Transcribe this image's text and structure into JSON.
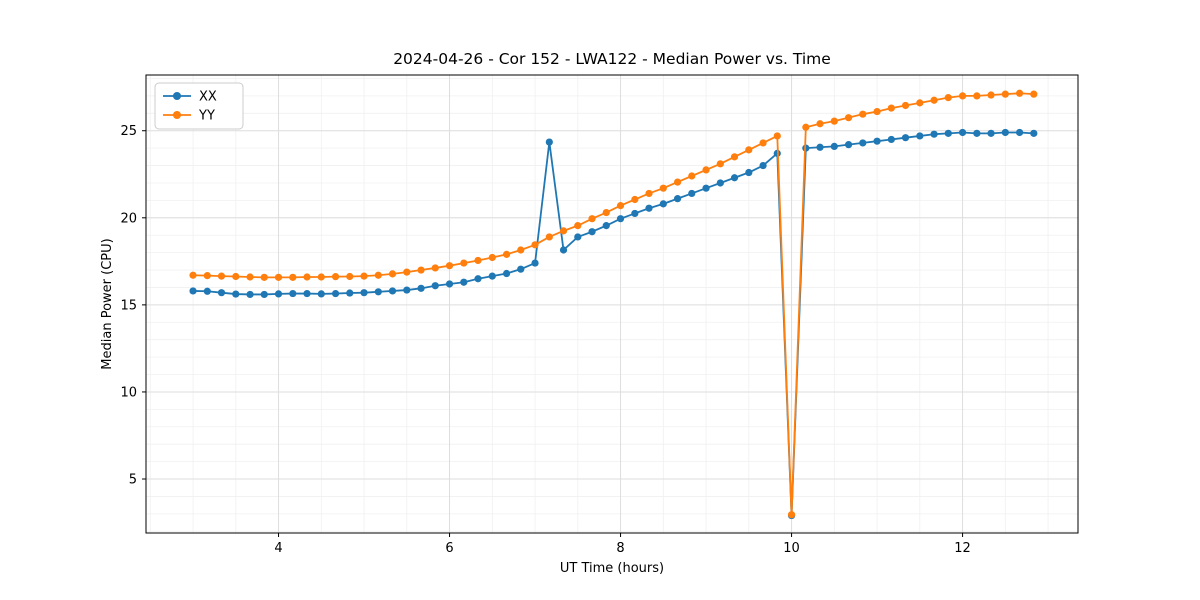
{
  "chart_data": {
    "type": "line",
    "title": "2024-04-26 - Cor 152 - LWA122 - Median Power vs. Time",
    "xlabel": "UT Time (hours)",
    "ylabel": "Median Power (CPU)",
    "xlim": [
      2.45,
      13.35
    ],
    "ylim": [
      1.9,
      28.2
    ],
    "xticks": [
      4,
      6,
      8,
      10,
      12
    ],
    "yticks": [
      5,
      10,
      15,
      20,
      25
    ],
    "grid": true,
    "legend_position": "upper-left",
    "x": [
      3.0,
      3.167,
      3.333,
      3.5,
      3.667,
      3.833,
      4.0,
      4.167,
      4.333,
      4.5,
      4.667,
      4.833,
      5.0,
      5.167,
      5.333,
      5.5,
      5.667,
      5.833,
      6.0,
      6.167,
      6.333,
      6.5,
      6.667,
      6.833,
      7.0,
      7.167,
      7.333,
      7.5,
      7.667,
      7.833,
      8.0,
      8.167,
      8.333,
      8.5,
      8.667,
      8.833,
      9.0,
      9.167,
      9.333,
      9.5,
      9.667,
      9.833,
      10.0,
      10.167,
      10.333,
      10.5,
      10.667,
      10.833,
      11.0,
      11.167,
      11.333,
      11.5,
      11.667,
      11.833,
      12.0,
      12.167,
      12.333,
      12.5,
      12.667,
      12.833
    ],
    "series": [
      {
        "name": "XX",
        "color": "#1f77b4",
        "values": [
          15.8,
          15.78,
          15.7,
          15.62,
          15.6,
          15.6,
          15.63,
          15.65,
          15.65,
          15.63,
          15.65,
          15.68,
          15.7,
          15.75,
          15.8,
          15.85,
          15.95,
          16.1,
          16.2,
          16.3,
          16.5,
          16.65,
          16.8,
          17.05,
          17.4,
          24.35,
          18.15,
          18.9,
          19.2,
          19.55,
          19.95,
          20.25,
          20.55,
          20.8,
          21.1,
          21.4,
          21.7,
          22.0,
          22.3,
          22.6,
          23.0,
          23.7,
          2.9,
          24.0,
          24.05,
          24.1,
          24.2,
          24.3,
          24.4,
          24.5,
          24.6,
          24.7,
          24.8,
          24.85,
          24.9,
          24.85,
          24.85,
          24.9,
          24.9,
          24.85
        ]
      },
      {
        "name": "YY",
        "color": "#ff7f0e",
        "values": [
          16.7,
          16.68,
          16.65,
          16.63,
          16.6,
          16.58,
          16.58,
          16.58,
          16.6,
          16.6,
          16.62,
          16.63,
          16.65,
          16.7,
          16.78,
          16.88,
          17.0,
          17.12,
          17.25,
          17.4,
          17.55,
          17.72,
          17.9,
          18.15,
          18.45,
          18.9,
          19.25,
          19.55,
          19.95,
          20.3,
          20.7,
          21.05,
          21.4,
          21.7,
          22.05,
          22.4,
          22.75,
          23.1,
          23.5,
          23.9,
          24.3,
          24.7,
          2.95,
          25.2,
          25.4,
          25.55,
          25.75,
          25.95,
          26.1,
          26.3,
          26.45,
          26.6,
          26.75,
          26.9,
          27.0,
          27.0,
          27.05,
          27.1,
          27.15,
          27.1
        ]
      }
    ]
  }
}
